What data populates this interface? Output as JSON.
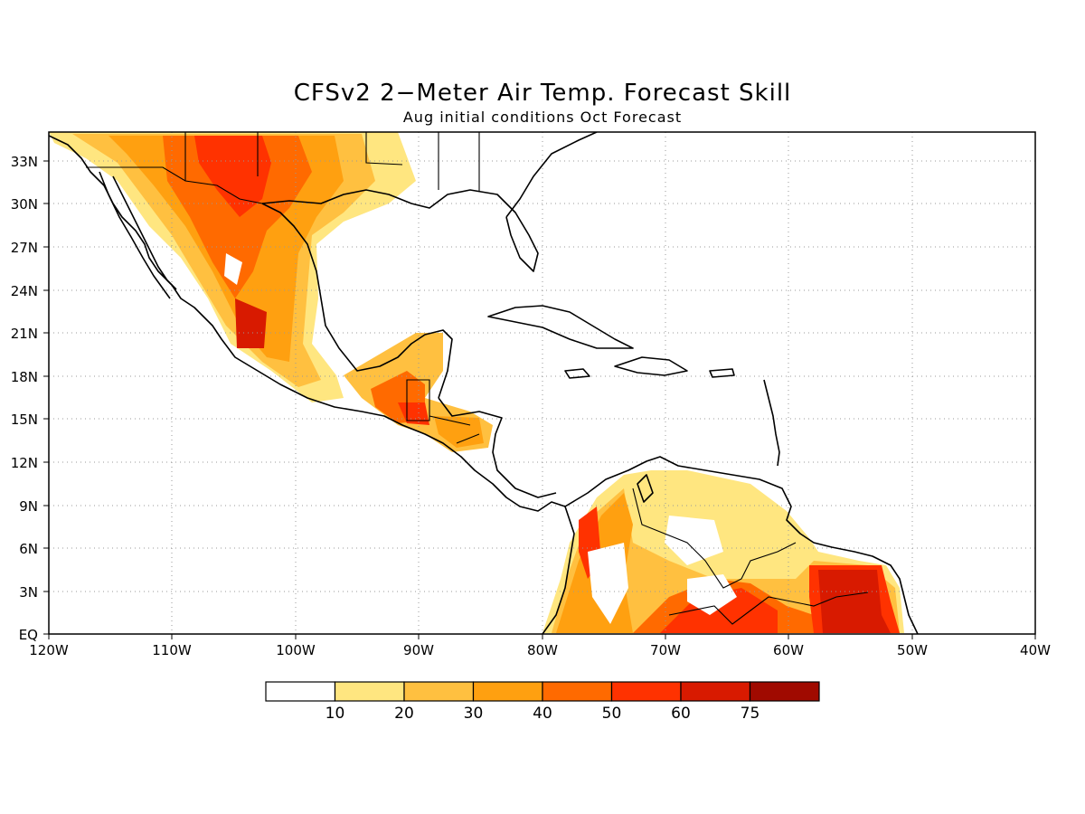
{
  "title": "CFSv2 2−Meter Air Temp. Forecast Skill",
  "subtitle": "Aug initial conditions  Oct Forecast",
  "map": {
    "lon_range": [
      -120,
      -40
    ],
    "lat_range": [
      0,
      35
    ],
    "x_ticks": [
      "120W",
      "110W",
      "100W",
      "90W",
      "80W",
      "70W",
      "60W",
      "50W",
      "40W"
    ],
    "y_ticks": [
      "EQ",
      "3N",
      "6N",
      "9N",
      "12N",
      "15N",
      "18N",
      "21N",
      "24N",
      "27N",
      "30N",
      "33N"
    ]
  },
  "colorbar": {
    "labels": [
      "10",
      "20",
      "30",
      "40",
      "50",
      "60",
      "75"
    ],
    "colors": [
      "#ffffff",
      "#ffe680",
      "#ffc040",
      "#ffa010",
      "#ff6a00",
      "#ff3200",
      "#d81a00",
      "#a00a00"
    ]
  }
}
